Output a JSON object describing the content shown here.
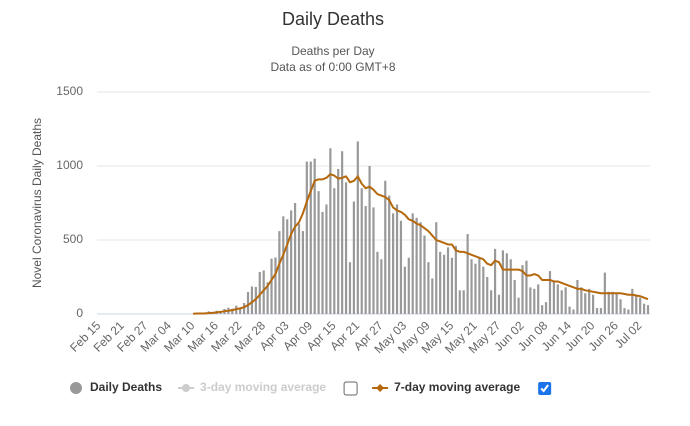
{
  "chart_data": {
    "type": "bar",
    "title": "Daily Deaths",
    "subtitle": [
      "Deaths per Day",
      "Data as of 0:00 GMT+8"
    ],
    "y_label": "Novel Coronavirus Daily Deaths",
    "categories": [
      "Feb 15",
      null,
      null,
      null,
      null,
      null,
      "Feb 21",
      null,
      null,
      null,
      null,
      null,
      "Feb 27",
      null,
      null,
      null,
      null,
      null,
      "Mar 04",
      null,
      null,
      null,
      null,
      null,
      "Mar 10",
      null,
      null,
      null,
      null,
      null,
      "Mar 16",
      null,
      null,
      null,
      null,
      null,
      "Mar 22",
      null,
      null,
      null,
      null,
      null,
      "Mar 28",
      null,
      null,
      null,
      null,
      null,
      "Apr 03",
      null,
      null,
      null,
      null,
      null,
      "Apr 09",
      null,
      null,
      null,
      null,
      null,
      "Apr 15",
      null,
      null,
      null,
      null,
      null,
      "Apr 21",
      null,
      null,
      null,
      null,
      null,
      "Apr 27",
      null,
      null,
      null,
      null,
      null,
      "May 03",
      null,
      null,
      null,
      null,
      null,
      "May 09",
      null,
      null,
      null,
      null,
      null,
      "May 15",
      null,
      null,
      null,
      null,
      null,
      "May 21",
      null,
      null,
      null,
      null,
      null,
      "May 27",
      null,
      null,
      null,
      null,
      null,
      "Jun 02",
      null,
      null,
      null,
      null,
      null,
      "Jun 08",
      null,
      null,
      null,
      null,
      null,
      "Jun 14",
      null,
      null,
      null,
      null,
      null,
      "Jun 20",
      null,
      null,
      null,
      null,
      null,
      "Jun 26",
      null,
      null,
      null,
      null,
      null,
      "Jul 02",
      null,
      null
    ],
    "series": [
      {
        "name": "Daily Deaths",
        "type": "bar",
        "color": "#999999",
        "visible": true,
        "values": [
          0,
          0,
          0,
          0,
          0,
          0,
          0,
          0,
          0,
          0,
          0,
          0,
          0,
          0,
          0,
          0,
          0,
          0,
          0,
          0,
          0,
          0,
          0,
          0,
          1,
          2,
          2,
          1,
          18,
          15,
          22,
          16,
          34,
          43,
          36,
          56,
          35,
          74,
          149,
          186,
          183,
          284,
          294,
          214,
          374,
          382,
          560,
          660,
          640,
          700,
          750,
          610,
          560,
          1030,
          1030,
          1050,
          830,
          690,
          740,
          1120,
          850,
          980,
          1100,
          890,
          350,
          760,
          1166,
          850,
          730,
          1000,
          720,
          420,
          370,
          900,
          800,
          680,
          740,
          630,
          320,
          380,
          680,
          650,
          620,
          530,
          350,
          240,
          620,
          420,
          400,
          450,
          380,
          460,
          160,
          160,
          540,
          370,
          340,
          380,
          320,
          250,
          160,
          440,
          130,
          430,
          410,
          370,
          230,
          110,
          330,
          360,
          180,
          170,
          200,
          60,
          80,
          290,
          220,
          200,
          160,
          180,
          50,
          30,
          230,
          180,
          140,
          170,
          130,
          40,
          40,
          280,
          150,
          150,
          140,
          100,
          40,
          30,
          170,
          130,
          110,
          70,
          60
        ]
      },
      {
        "name": "3-day moving average",
        "type": "line",
        "color": "#cccccc",
        "visible": false,
        "checkbox": false
      },
      {
        "name": "7-day moving average",
        "type": "line",
        "color": "#b5680c",
        "visible": true,
        "checkbox": true,
        "values": [
          null,
          null,
          null,
          null,
          null,
          null,
          null,
          null,
          null,
          null,
          null,
          null,
          null,
          null,
          null,
          null,
          null,
          null,
          null,
          null,
          null,
          null,
          null,
          null,
          2,
          3,
          3,
          4,
          6,
          8,
          11,
          14,
          19,
          22,
          26,
          33,
          38,
          46,
          60,
          80,
          100,
          130,
          160,
          190,
          230,
          270,
          340,
          400,
          470,
          540,
          590,
          620,
          680,
          760,
          830,
          900,
          910,
          910,
          920,
          945,
          935,
          915,
          920,
          930,
          890,
          900,
          930,
          880,
          850,
          860,
          840,
          810,
          800,
          790,
          770,
          720,
          700,
          690,
          670,
          640,
          630,
          610,
          600,
          580,
          560,
          530,
          500,
          490,
          480,
          470,
          470,
          430,
          420,
          420,
          410,
          400,
          390,
          380,
          370,
          340,
          330,
          360,
          350,
          300,
          300,
          300,
          300,
          300,
          290,
          260,
          260,
          270,
          260,
          230,
          230,
          230,
          220,
          220,
          210,
          200,
          190,
          180,
          170,
          170,
          160,
          155,
          150,
          145,
          140,
          140,
          140,
          140,
          140,
          140,
          135,
          130,
          130,
          125,
          120,
          110,
          100
        ]
      }
    ],
    "ylim": [
      0,
      1500
    ],
    "yticks": [
      0,
      500,
      1000,
      1500
    ],
    "grid": true
  }
}
